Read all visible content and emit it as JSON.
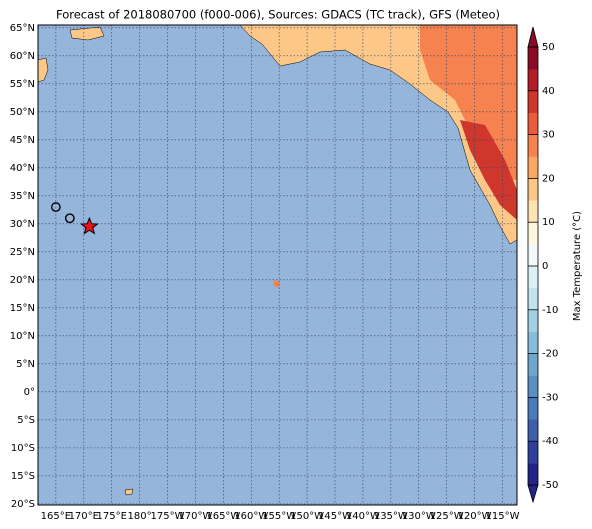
{
  "title": "Forecast of 2018080700 (f000-006), Sources: GDACS (TC track), GFS (Meteo)",
  "map": {
    "lon_range": [
      161.8,
      247.6
    ],
    "lat_range": [
      -20.2,
      65.5
    ],
    "ocean_color": "#95b5da",
    "lat_ticks": [
      {
        "value": 65,
        "label": "65°N"
      },
      {
        "value": 60,
        "label": "60°N"
      },
      {
        "value": 55,
        "label": "55°N"
      },
      {
        "value": 50,
        "label": "50°N"
      },
      {
        "value": 45,
        "label": "45°N"
      },
      {
        "value": 40,
        "label": "40°N"
      },
      {
        "value": 35,
        "label": "35°N"
      },
      {
        "value": 30,
        "label": "30°N"
      },
      {
        "value": 25,
        "label": "25°N"
      },
      {
        "value": 20,
        "label": "20°N"
      },
      {
        "value": 15,
        "label": "15°N"
      },
      {
        "value": 10,
        "label": "10°N"
      },
      {
        "value": 5,
        "label": "5°N"
      },
      {
        "value": 0,
        "label": "0°"
      },
      {
        "value": -5,
        "label": "5°S"
      },
      {
        "value": -10,
        "label": "10°S"
      },
      {
        "value": -15,
        "label": "15°S"
      },
      {
        "value": -20,
        "label": "20°S"
      }
    ],
    "lon_ticks": [
      {
        "value": 165,
        "label": "165°E"
      },
      {
        "value": 170,
        "label": "170°E"
      },
      {
        "value": 175,
        "label": "175°E"
      },
      {
        "value": 180,
        "label": "180°"
      },
      {
        "value": 185,
        "label": "175°W"
      },
      {
        "value": 190,
        "label": "170°W"
      },
      {
        "value": 195,
        "label": "165°W"
      },
      {
        "value": 200,
        "label": "160°W"
      },
      {
        "value": 205,
        "label": "155°W"
      },
      {
        "value": 210,
        "label": "150°W"
      },
      {
        "value": 215,
        "label": "145°W"
      },
      {
        "value": 220,
        "label": "140°W"
      },
      {
        "value": 225,
        "label": "135°W"
      },
      {
        "value": 230,
        "label": "130°W"
      },
      {
        "value": 235,
        "label": "125°W"
      },
      {
        "value": 240,
        "label": "120°W"
      },
      {
        "value": 245,
        "label": "115°W"
      }
    ],
    "track": [
      {
        "lon": 165,
        "lat": 33,
        "marker": "circle"
      },
      {
        "lon": 167.5,
        "lat": 31,
        "marker": "circle"
      },
      {
        "lon": 171,
        "lat": 29.5,
        "marker": "star"
      }
    ]
  },
  "colorbar": {
    "label": "Max Temperature (°C)",
    "ticks": [
      50,
      40,
      30,
      20,
      10,
      0,
      -10,
      -20,
      -30,
      -40,
      -50
    ],
    "colors": [
      "#23238b",
      "#2f3f9c",
      "#3f5faa",
      "#4a7ab7",
      "#5b8fc3",
      "#6fa6ce",
      "#88bcdb",
      "#a4d0e6",
      "#c1e2ef",
      "#dcf0f6",
      "#f2f9fb",
      "#fff6e0",
      "#fee4b3",
      "#fdc887",
      "#fca865",
      "#f6824f",
      "#e85b3b",
      "#d0372c",
      "#b21b28",
      "#8a0b25"
    ]
  }
}
